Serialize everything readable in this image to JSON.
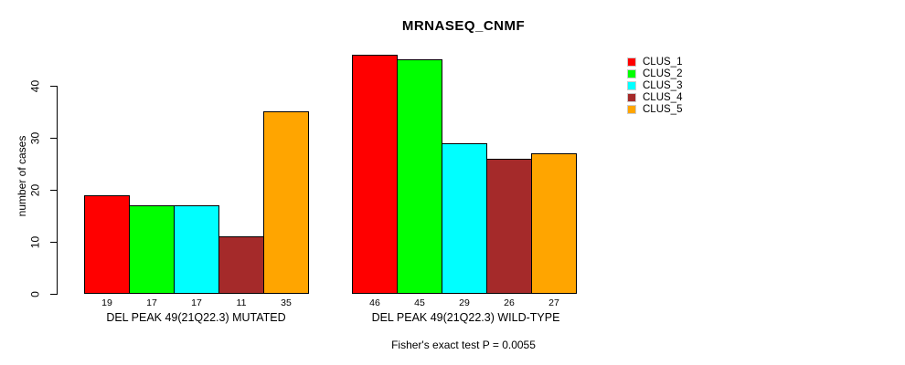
{
  "title": "MRNASEQ_CNMF",
  "chart_data": {
    "type": "bar",
    "title": "MRNASEQ_CNMF",
    "xlabel": "",
    "ylabel": "number of cases",
    "ylim": [
      0,
      46
    ],
    "yticks": [
      0,
      10,
      20,
      30,
      40
    ],
    "grid": false,
    "bar_value_labels_shown": true,
    "categories": [
      "DEL PEAK 49(21Q22.3) MUTATED",
      "DEL PEAK 49(21Q22.3) WILD-TYPE"
    ],
    "series": [
      {
        "name": "CLUS_1",
        "color": "#ff0000",
        "values": [
          19,
          46
        ]
      },
      {
        "name": "CLUS_2",
        "color": "#00ff00",
        "values": [
          17,
          45
        ]
      },
      {
        "name": "CLUS_3",
        "color": "#00ffff",
        "values": [
          17,
          29
        ]
      },
      {
        "name": "CLUS_4",
        "color": "#a52a2a",
        "values": [
          11,
          26
        ]
      },
      {
        "name": "CLUS_5",
        "color": "#ffa500",
        "values": [
          35,
          27
        ]
      }
    ],
    "legend": {
      "position": "top-right",
      "entries": [
        "CLUS_1",
        "CLUS_2",
        "CLUS_3",
        "CLUS_4",
        "CLUS_5"
      ]
    },
    "annotation": "Fisher's exact test P = 0.0055"
  }
}
